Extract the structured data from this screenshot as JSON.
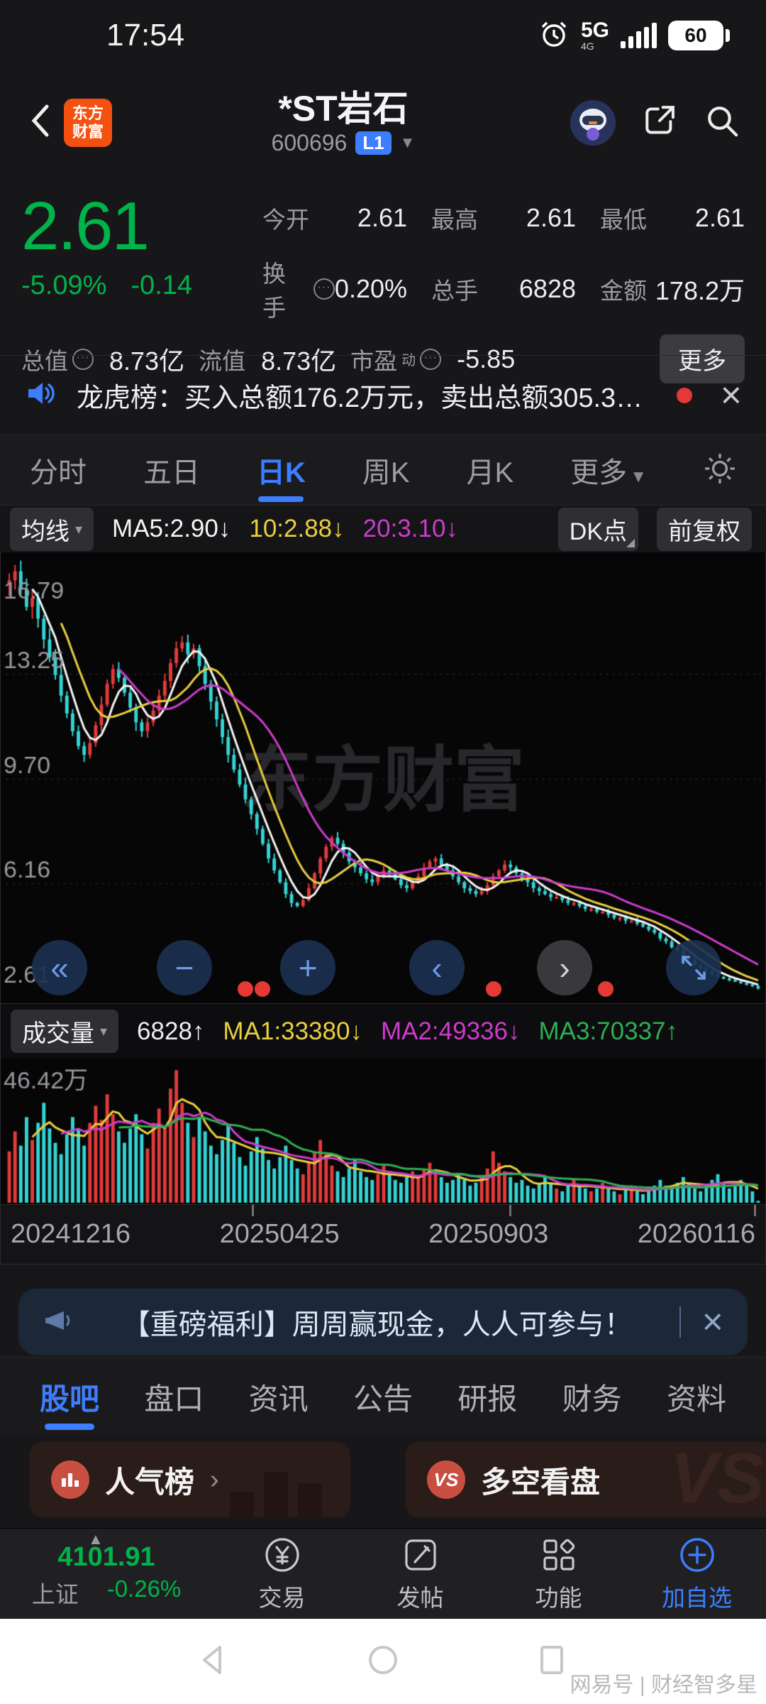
{
  "status_bar": {
    "time": "17:54",
    "network": "5G",
    "battery": "60"
  },
  "header": {
    "title": "*ST岩石",
    "code": "600696",
    "level_badge": "L1",
    "logo_line1": "东方",
    "logo_line2": "财富"
  },
  "colors": {
    "down_green": "#00b34a",
    "up_red": "#e23b3b",
    "cyan": "#35d3d3",
    "accent_blue": "#3d7eff",
    "yellow": "#e9ce3e",
    "magenta": "#cb3ccb",
    "vol_green": "#2fae52"
  },
  "quote": {
    "price": "2.61",
    "change_pct": "-5.09%",
    "change_amt": "-0.14",
    "fields_row1": [
      {
        "label": "今开",
        "value": "2.61"
      },
      {
        "label": "最高",
        "value": "2.61"
      },
      {
        "label": "最低",
        "value": "2.61"
      }
    ],
    "fields_row2": [
      {
        "label": "换手",
        "value": "0.20%"
      },
      {
        "label": "总手",
        "value": "6828"
      },
      {
        "label": "金额",
        "value": "178.2万"
      }
    ],
    "fields_row3": [
      {
        "label": "总值",
        "value": "8.73亿"
      },
      {
        "label": "流值",
        "value": "8.73亿"
      },
      {
        "label": "市盈",
        "sup": "动",
        "value": "-5.85"
      }
    ],
    "more_label": "更多"
  },
  "lhb": {
    "text": "龙虎榜：买入总额176.2万元，卖出总额305.3…"
  },
  "period_tabs": [
    {
      "label": "分时"
    },
    {
      "label": "五日"
    },
    {
      "label": "日K"
    },
    {
      "label": "周K"
    },
    {
      "label": "月K"
    },
    {
      "label": "更多"
    }
  ],
  "ma_bar": {
    "selector": "均线",
    "items": [
      {
        "text": "MA5:2.90↓",
        "color": "#f5f5f5"
      },
      {
        "text": "10:2.88↓",
        "color": "#e9ce3e"
      },
      {
        "text": "20:3.10↓",
        "color": "#cb3ccb"
      }
    ],
    "dk_label": "DK点",
    "fq_label": "前复权"
  },
  "volume_bar": {
    "selector": "成交量",
    "latest": "6828↑",
    "items": [
      {
        "text": "MA1:33380↓",
        "color": "#e9ce3e"
      },
      {
        "text": "MA2:49336↓",
        "color": "#cb3ccb"
      },
      {
        "text": "MA3:70337↑",
        "color": "#2fae52"
      }
    ]
  },
  "chart_watermark": "东方财富",
  "chart_data": [
    {
      "type": "candlestick",
      "title": "*ST岩石 日K 前复权",
      "y_ticks": [
        "16.79",
        "13.25",
        "9.70",
        "6.16",
        "2.61"
      ],
      "ylim": [
        2.45,
        17.1
      ],
      "x_axis_labels": [
        "20241216",
        "20250425",
        "20250903",
        "20260116"
      ],
      "ma_legend": [
        "MA5:2.90↓",
        "10:2.88↓",
        "20:3.10↓"
      ],
      "closes": [
        16.4,
        16.7,
        16.1,
        15.5,
        15.8,
        15.1,
        14.4,
        13.8,
        13.2,
        12.5,
        11.9,
        11.3,
        10.8,
        10.5,
        10.9,
        11.5,
        12.2,
        12.9,
        13.4,
        13.1,
        12.6,
        12.1,
        11.6,
        11.3,
        11.6,
        12.0,
        12.5,
        13.0,
        13.6,
        14.1,
        14.3,
        13.9,
        14.1,
        13.5,
        12.9,
        12.3,
        11.7,
        11.1,
        10.5,
        10.0,
        9.5,
        9.0,
        8.5,
        8.0,
        7.5,
        7.0,
        6.6,
        6.2,
        5.8,
        5.5,
        5.4,
        5.6,
        6.0,
        6.5,
        7.0,
        7.4,
        7.7,
        7.5,
        7.2,
        6.9,
        6.7,
        6.5,
        6.3,
        6.2,
        6.4,
        6.6,
        6.5,
        6.3,
        6.1,
        6.0,
        6.2,
        6.4,
        6.7,
        6.9,
        7.0,
        6.8,
        6.6,
        6.4,
        6.2,
        6.0,
        5.9,
        5.8,
        5.9,
        6.1,
        6.4,
        6.6,
        6.8,
        6.7,
        6.5,
        6.3,
        6.2,
        6.0,
        5.9,
        5.8,
        5.7,
        5.7,
        5.6,
        5.5,
        5.5,
        5.4,
        5.3,
        5.3,
        5.2,
        5.2,
        5.1,
        5.0,
        5.0,
        4.9,
        4.9,
        4.8,
        4.7,
        4.6,
        4.5,
        4.3,
        4.2,
        4.0,
        3.9,
        3.7,
        3.6,
        3.4,
        3.3,
        3.2,
        3.1,
        3.0,
        2.95,
        2.9,
        2.85,
        2.8,
        2.75,
        2.7,
        2.61
      ]
    },
    {
      "type": "bar",
      "name": "成交量",
      "y_top_label": "46.42万",
      "ymax": 48,
      "latest": "6828",
      "ma_legend": [
        "MA1:33380↓",
        "MA2:49336↓",
        "MA3:70337↑"
      ],
      "values": [
        18,
        25,
        20,
        30,
        22,
        28,
        35,
        26,
        21,
        17,
        24,
        30,
        26,
        20,
        28,
        34,
        29,
        38,
        31,
        25,
        21,
        26,
        31,
        24,
        19,
        28,
        33,
        27,
        40,
        46.42,
        35,
        28,
        23,
        30,
        25,
        20,
        17,
        22,
        27,
        21,
        16,
        13,
        18,
        23,
        19,
        15,
        12,
        16,
        20,
        15,
        12,
        10,
        14,
        18,
        22,
        17,
        13,
        11,
        9,
        12,
        15,
        11,
        9,
        8,
        10,
        13,
        10,
        8,
        7,
        9,
        11,
        9,
        12,
        14,
        11,
        9,
        7,
        8,
        10,
        8,
        6,
        7,
        9,
        12,
        18,
        14,
        11,
        9,
        7,
        8,
        6,
        5,
        7,
        9,
        7,
        5,
        4,
        6,
        8,
        6,
        5,
        4,
        5,
        7,
        5,
        4,
        3,
        5,
        6,
        4,
        3,
        4,
        6,
        8,
        6,
        5,
        7,
        9,
        7,
        5,
        4,
        6,
        8,
        10,
        7,
        5,
        6,
        8,
        6,
        4,
        0.68
      ]
    }
  ],
  "dates": [
    "20241216",
    "20250425",
    "20250903",
    "20260116"
  ],
  "announcement": {
    "text": "【重磅福利】周周赢现金，人人可参与！"
  },
  "section_tabs": [
    {
      "label": "股吧"
    },
    {
      "label": "盘口"
    },
    {
      "label": "资讯"
    },
    {
      "label": "公告"
    },
    {
      "label": "研报"
    },
    {
      "label": "财务"
    },
    {
      "label": "资料"
    }
  ],
  "cards": [
    {
      "title": "人气榜"
    },
    {
      "title": "多空看盘",
      "vs": "VS"
    }
  ],
  "bottom_bar": {
    "index_value": "4101.91",
    "index_name": "上证",
    "index_change": "-0.26%",
    "items": [
      {
        "label": "交易"
      },
      {
        "label": "发帖"
      },
      {
        "label": "功能"
      },
      {
        "label": "加自选"
      }
    ]
  },
  "watermark": "网易号 | 财经智多星",
  "glyphs": {
    "caret_down": "▾",
    "triangle_down": "▼",
    "chevron_right": "›",
    "close": "×",
    "double_left": "«",
    "minus": "−",
    "plus": "+",
    "left": "‹",
    "right": "›",
    "up_caret": "▲",
    "dots": "···"
  }
}
